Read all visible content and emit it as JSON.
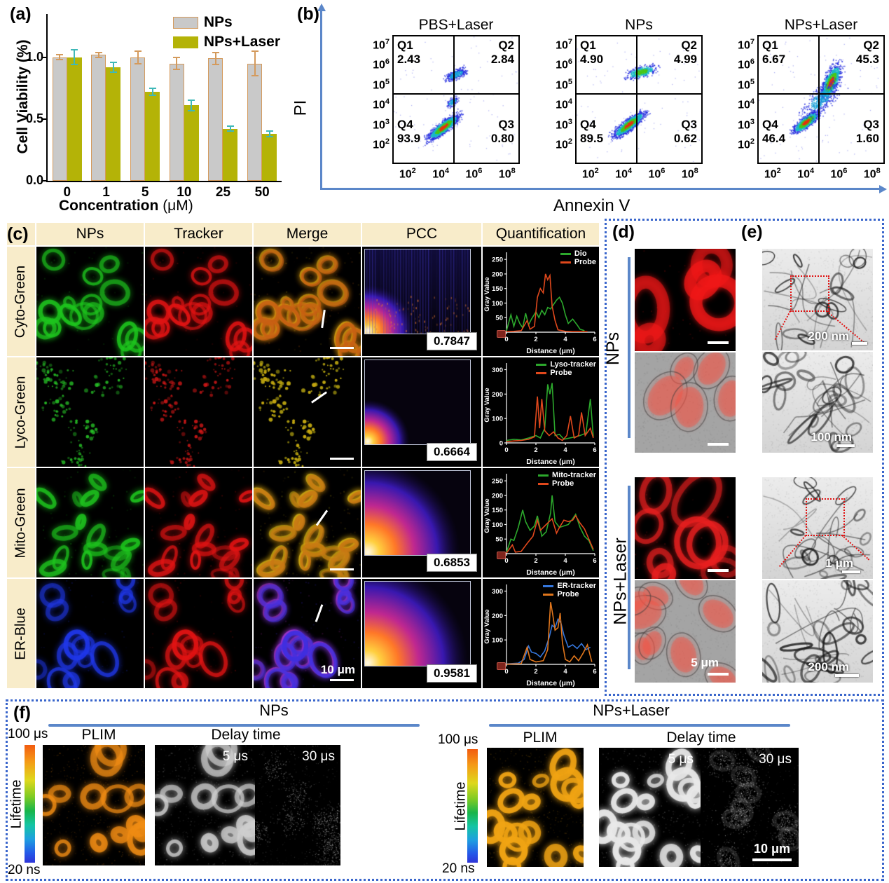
{
  "panels": {
    "a": {
      "tag": "(a)"
    },
    "b": {
      "tag": "(b)",
      "ylabel": "PI",
      "xlabel": "Annexin  V",
      "y_exponents": [
        "7",
        "6",
        "5",
        "4",
        "3",
        "2"
      ],
      "x_exponents": [
        "2",
        "4",
        "6",
        "8"
      ],
      "plots": [
        {
          "title": "PBS+Laser",
          "quads": [
            {
              "name": "Q1",
              "value": "2.43"
            },
            {
              "name": "Q2",
              "value": "2.84"
            },
            {
              "name": "Q3",
              "value": "0.80"
            },
            {
              "name": "Q4",
              "value": "93.9"
            }
          ]
        },
        {
          "title": "NPs",
          "quads": [
            {
              "name": "Q1",
              "value": "4.90"
            },
            {
              "name": "Q2",
              "value": "4.99"
            },
            {
              "name": "Q3",
              "value": "0.62"
            },
            {
              "name": "Q4",
              "value": "89.5"
            }
          ]
        },
        {
          "title": "NPs+Laser",
          "quads": [
            {
              "name": "Q1",
              "value": "6.67"
            },
            {
              "name": "Q2",
              "value": "45.3"
            },
            {
              "name": "Q3",
              "value": "1.60"
            },
            {
              "name": "Q4",
              "value": "46.4"
            }
          ]
        }
      ]
    },
    "c": {
      "tag": "(c)",
      "headers": [
        "NPs",
        "Tracker",
        "Merge",
        "PCC",
        "Quantification"
      ],
      "rows": [
        {
          "label": "Cyto-Green",
          "pcc": "0.7847"
        },
        {
          "label": "Lyco-Green",
          "pcc": "0.6664"
        },
        {
          "label": "Mito-Green",
          "pcc": "0.6853"
        },
        {
          "label": "ER-Blue",
          "pcc": "0.9581"
        }
      ],
      "scale_bar": "10 μm"
    },
    "d": {
      "tag": "(d)",
      "groups": [
        "NPs",
        "NPs+Laser"
      ],
      "scale_bar": "5 μm"
    },
    "e": {
      "tag": "(e)",
      "scale_bars": [
        "200 nm",
        "100 nm",
        "1 μm",
        "200 nm"
      ]
    },
    "f": {
      "tag": "(f)",
      "groups": [
        {
          "title": "NPs"
        },
        {
          "title": "NPs+Laser"
        }
      ],
      "plim_label": "PLIM",
      "delay_label": "Delay time",
      "delays": [
        "5 μs",
        "30 μs"
      ],
      "colorbar": {
        "top": "100 μs",
        "bottom": "20 ns",
        "label": "Lifetime"
      },
      "scale_bar": "10 μm"
    }
  },
  "chart_data": [
    {
      "id": "cell-viability",
      "type": "bar",
      "categories": [
        "0",
        "1",
        "5",
        "10",
        "25",
        "50"
      ],
      "series": [
        {
          "name": "NPs",
          "color": "#c9c9c9",
          "edge": "#d49a5c",
          "err_color": "#d49a5c",
          "values": [
            1.0,
            1.02,
            1.0,
            0.95,
            0.99,
            0.95
          ],
          "errors": [
            0.02,
            0.02,
            0.05,
            0.05,
            0.05,
            0.1
          ]
        },
        {
          "name": "NPs+Laser",
          "color": "#b4b307",
          "edge": "#b4b307",
          "err_color": "#3fb8b8",
          "values": [
            1.0,
            0.92,
            0.72,
            0.61,
            0.42,
            0.38
          ],
          "errors": [
            0.06,
            0.04,
            0.03,
            0.04,
            0.02,
            0.02
          ]
        }
      ],
      "ylabel": "Cell Viability (%)",
      "xlabel": "Concentration",
      "x_unit": "(μM)",
      "yticks": [
        "0.0",
        "0.5",
        "1.0"
      ],
      "ylim": [
        0,
        1.35
      ]
    },
    {
      "id": "quant-cyto",
      "type": "line",
      "ylabel": "Gray Value",
      "xlabel": "Distance (μm)",
      "ylim": [
        0,
        260
      ],
      "yticks": [
        0,
        50,
        100,
        150,
        200,
        250
      ],
      "xticks": [
        0,
        2,
        4,
        6
      ],
      "series": [
        {
          "name": "Dio",
          "color": "#2ca82c",
          "points": [
            [
              0,
              5
            ],
            [
              0.3,
              60
            ],
            [
              0.5,
              20
            ],
            [
              0.7,
              55
            ],
            [
              0.9,
              30
            ],
            [
              1.1,
              15
            ],
            [
              1.3,
              65
            ],
            [
              1.5,
              25
            ],
            [
              1.7,
              45
            ],
            [
              2.0,
              70
            ],
            [
              2.2,
              50
            ],
            [
              2.4,
              75
            ],
            [
              2.6,
              60
            ],
            [
              2.8,
              85
            ],
            [
              3.0,
              80
            ],
            [
              3.2,
              95
            ],
            [
              3.4,
              110
            ],
            [
              3.6,
              120
            ],
            [
              3.8,
              100
            ],
            [
              4.0,
              60
            ],
            [
              4.2,
              30
            ],
            [
              4.5,
              45
            ],
            [
              4.8,
              25
            ],
            [
              5.0,
              10
            ],
            [
              5.3,
              5
            ]
          ]
        },
        {
          "name": "Probe",
          "color": "#e0481c",
          "points": [
            [
              0,
              2
            ],
            [
              0.5,
              3
            ],
            [
              1.0,
              5
            ],
            [
              1.4,
              40
            ],
            [
              1.6,
              10
            ],
            [
              1.9,
              20
            ],
            [
              2.1,
              120
            ],
            [
              2.3,
              150
            ],
            [
              2.5,
              135
            ],
            [
              2.65,
              200
            ],
            [
              2.8,
              180
            ],
            [
              2.95,
              195
            ],
            [
              3.1,
              90
            ],
            [
              3.3,
              40
            ],
            [
              3.5,
              8
            ],
            [
              4.0,
              3
            ],
            [
              4.5,
              2
            ],
            [
              5.0,
              2
            ],
            [
              5.5,
              2
            ]
          ]
        }
      ]
    },
    {
      "id": "quant-lyso",
      "type": "line",
      "ylabel": "Gray Value",
      "xlabel": "Distance (μm)",
      "ylim": [
        0,
        310
      ],
      "yticks": [
        0,
        100,
        200,
        300
      ],
      "xticks": [
        0,
        2,
        4,
        6
      ],
      "series": [
        {
          "name": "Lyso-tracker",
          "color": "#2ca82c",
          "points": [
            [
              0,
              10
            ],
            [
              0.5,
              15
            ],
            [
              1.0,
              12
            ],
            [
              1.5,
              20
            ],
            [
              2.0,
              30
            ],
            [
              2.3,
              20
            ],
            [
              2.6,
              60
            ],
            [
              2.8,
              240
            ],
            [
              2.95,
              200
            ],
            [
              3.1,
              245
            ],
            [
              3.3,
              30
            ],
            [
              3.6,
              35
            ],
            [
              3.9,
              15
            ],
            [
              4.3,
              20
            ],
            [
              4.7,
              25
            ],
            [
              5.0,
              30
            ],
            [
              5.4,
              40
            ],
            [
              5.7,
              180
            ],
            [
              5.9,
              25
            ]
          ]
        },
        {
          "name": "Probe",
          "color": "#e0481c",
          "points": [
            [
              0,
              5
            ],
            [
              0.5,
              8
            ],
            [
              1.0,
              10
            ],
            [
              1.5,
              15
            ],
            [
              1.9,
              25
            ],
            [
              2.1,
              190
            ],
            [
              2.25,
              60
            ],
            [
              2.4,
              180
            ],
            [
              2.6,
              50
            ],
            [
              2.9,
              30
            ],
            [
              3.2,
              45
            ],
            [
              3.5,
              20
            ],
            [
              3.8,
              10
            ],
            [
              4.1,
              30
            ],
            [
              4.35,
              110
            ],
            [
              4.6,
              20
            ],
            [
              4.9,
              30
            ],
            [
              5.1,
              125
            ],
            [
              5.35,
              30
            ],
            [
              5.7,
              60
            ],
            [
              5.9,
              20
            ]
          ]
        }
      ]
    },
    {
      "id": "quant-mito",
      "type": "line",
      "ylabel": "Gray Value",
      "xlabel": "Distance (μm)",
      "ylim": [
        0,
        260
      ],
      "yticks": [
        0,
        50,
        100,
        150,
        200,
        250
      ],
      "xticks": [
        0,
        2,
        4,
        6
      ],
      "series": [
        {
          "name": "Mito-tracker",
          "color": "#2ca82c",
          "points": [
            [
              0,
              5
            ],
            [
              0.3,
              50
            ],
            [
              0.5,
              45
            ],
            [
              0.8,
              90
            ],
            [
              1.1,
              150
            ],
            [
              1.3,
              110
            ],
            [
              1.6,
              80
            ],
            [
              1.9,
              95
            ],
            [
              2.1,
              130
            ],
            [
              2.4,
              60
            ],
            [
              2.7,
              75
            ],
            [
              3.0,
              140
            ],
            [
              3.1,
              200
            ],
            [
              3.3,
              110
            ],
            [
              3.6,
              90
            ],
            [
              3.9,
              95
            ],
            [
              4.2,
              100
            ],
            [
              4.5,
              120
            ],
            [
              4.7,
              135
            ],
            [
              5.0,
              90
            ],
            [
              5.3,
              60
            ],
            [
              5.6,
              45
            ],
            [
              5.9,
              10
            ]
          ]
        },
        {
          "name": "Probe",
          "color": "#e0481c",
          "points": [
            [
              0,
              2
            ],
            [
              0.4,
              30
            ],
            [
              0.6,
              5
            ],
            [
              1.0,
              8
            ],
            [
              1.4,
              35
            ],
            [
              1.8,
              60
            ],
            [
              2.1,
              115
            ],
            [
              2.3,
              80
            ],
            [
              2.6,
              95
            ],
            [
              2.9,
              110
            ],
            [
              3.1,
              120
            ],
            [
              3.4,
              70
            ],
            [
              3.6,
              90
            ],
            [
              3.9,
              115
            ],
            [
              4.2,
              110
            ],
            [
              4.5,
              115
            ],
            [
              4.7,
              130
            ],
            [
              5.0,
              105
            ],
            [
              5.3,
              85
            ],
            [
              5.6,
              50
            ],
            [
              5.9,
              15
            ]
          ]
        }
      ]
    },
    {
      "id": "quant-er",
      "type": "line",
      "ylabel": "Gray Value",
      "xlabel": "Distance (μm)",
      "ylim": [
        0,
        310
      ],
      "yticks": [
        0,
        100,
        200,
        300
      ],
      "xticks": [
        0,
        2,
        4,
        6
      ],
      "series": [
        {
          "name": "ER-tracker",
          "color": "#3577dd",
          "points": [
            [
              0,
              2
            ],
            [
              0.8,
              5
            ],
            [
              1.2,
              20
            ],
            [
              1.5,
              75
            ],
            [
              1.7,
              50
            ],
            [
              2.0,
              45
            ],
            [
              2.3,
              30
            ],
            [
              2.6,
              55
            ],
            [
              2.9,
              110
            ],
            [
              3.1,
              160
            ],
            [
              3.3,
              150
            ],
            [
              3.5,
              185
            ],
            [
              3.7,
              170
            ],
            [
              3.9,
              120
            ],
            [
              4.2,
              70
            ],
            [
              4.5,
              80
            ],
            [
              4.8,
              65
            ],
            [
              5.1,
              85
            ],
            [
              5.4,
              60
            ],
            [
              5.7,
              70
            ]
          ]
        },
        {
          "name": "Probe",
          "color": "#e0761c",
          "points": [
            [
              0,
              1
            ],
            [
              1.0,
              3
            ],
            [
              1.4,
              70
            ],
            [
              1.6,
              20
            ],
            [
              2.0,
              10
            ],
            [
              2.5,
              15
            ],
            [
              2.8,
              60
            ],
            [
              3.0,
              255
            ],
            [
              3.15,
              200
            ],
            [
              3.3,
              140
            ],
            [
              3.5,
              150
            ],
            [
              3.65,
              210
            ],
            [
              3.8,
              90
            ],
            [
              4.0,
              20
            ],
            [
              4.3,
              10
            ],
            [
              4.6,
              35
            ],
            [
              4.9,
              15
            ],
            [
              5.2,
              45
            ],
            [
              5.5,
              80
            ],
            [
              5.8,
              10
            ]
          ]
        }
      ]
    }
  ]
}
